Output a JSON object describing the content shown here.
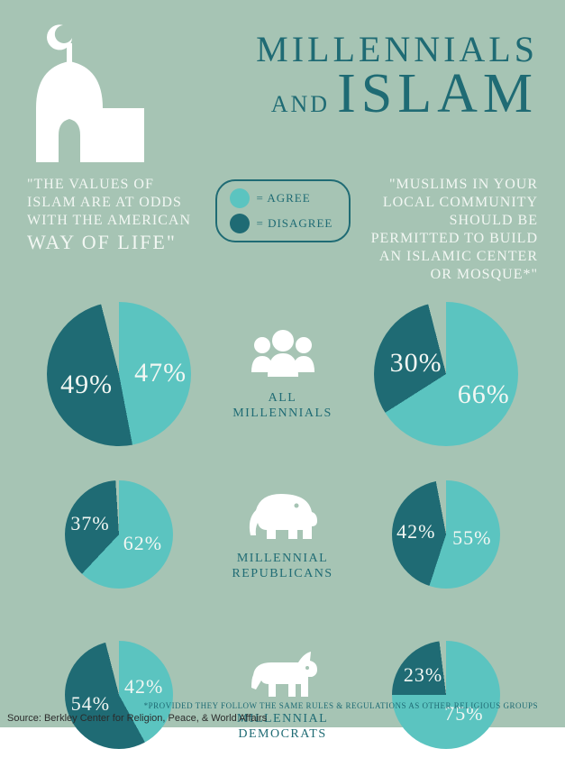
{
  "colors": {
    "background": "#a6c4b4",
    "agree": "#5bc4c0",
    "disagree": "#1f6b74",
    "text_dark": "#1f6b74",
    "icon_white": "#ffffff",
    "label_white": "#f2f7f3",
    "source_text": "#2b2b2b"
  },
  "title": {
    "line1": "MILLENNIALS",
    "and": "AND",
    "line2": "ISLAM"
  },
  "question_left": {
    "pre": "\"THE VALUES OF ISLAM ARE AT ODDS WITH THE AMERICAN",
    "emph": "WAY OF LIFE\""
  },
  "question_right": {
    "text": "\"MUSLIMS IN YOUR LOCAL COMMUNITY SHOULD BE PERMITTED TO BUILD AN ISLAMIC CENTER OR MOSQUE*\""
  },
  "legend": {
    "agree": "= AGREE",
    "disagree": "= DISAGREE"
  },
  "groups": [
    {
      "label": "ALL MILLENNIALS",
      "icon": "people"
    },
    {
      "label": "MILLENNIAL REPUBLICANS",
      "icon": "elephant"
    },
    {
      "label": "MILLENNIAL DEMOCRATS",
      "icon": "donkey"
    }
  ],
  "pies": {
    "left": [
      {
        "agree": 47,
        "disagree": 49,
        "size": 160
      },
      {
        "agree": 62,
        "disagree": 37,
        "size": 120
      },
      {
        "agree": 42,
        "disagree": 54,
        "size": 120
      }
    ],
    "right": [
      {
        "agree": 66,
        "disagree": 30,
        "size": 160
      },
      {
        "agree": 55,
        "disagree": 42,
        "size": 120
      },
      {
        "agree": 75,
        "disagree": 23,
        "size": 120
      }
    ]
  },
  "footnote": "*PROVIDED THEY FOLLOW THE SAME RULES & REGULATIONS AS OTHER RELIGIOUS GROUPS",
  "source": "Source: Berkley Center for Religion, Peace, & World Affairs"
}
